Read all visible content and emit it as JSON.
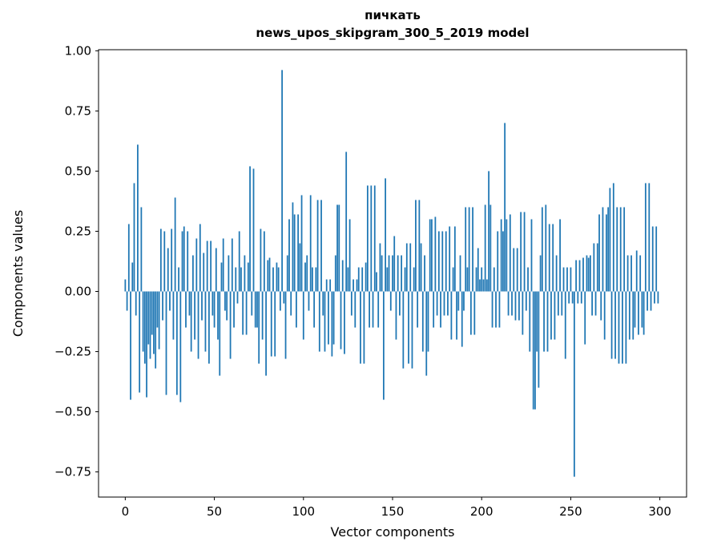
{
  "figure": {
    "title_line1": "пичкать",
    "title_line2": "news_upos_skipgram_300_5_2019 model",
    "xlabel": "Vector components",
    "ylabel": "Components values"
  },
  "chart_data": {
    "type": "bar",
    "title": "пичкать — news_upos_skipgram_300_5_2019 model",
    "xlabel": "Vector components",
    "ylabel": "Components values",
    "bar_color": "#1f77b4",
    "axis_color": "#000000",
    "grid": false,
    "legend": null,
    "n_components": 300,
    "xlim": [
      -15,
      315
    ],
    "ylim": [
      -0.8545,
      1.0045
    ],
    "xticks": [
      0,
      50,
      100,
      150,
      200,
      250,
      300
    ],
    "xtick_labels": [
      "0",
      "50",
      "100",
      "150",
      "200",
      "250",
      "300"
    ],
    "yticks": [
      -0.75,
      -0.5,
      -0.25,
      0,
      0.25,
      0.5,
      0.75,
      1.0
    ],
    "ytick_labels": [
      "−0.75",
      "−0.50",
      "−0.25",
      "0.00",
      "0.25",
      "0.50",
      "0.75",
      "1.00"
    ],
    "values": [
      0.05,
      -0.08,
      0.28,
      -0.45,
      0.12,
      0.45,
      -0.1,
      0.61,
      -0.42,
      0.35,
      -0.25,
      -0.3,
      -0.44,
      -0.22,
      -0.28,
      -0.18,
      -0.26,
      -0.32,
      -0.15,
      -0.24,
      0.26,
      -0.12,
      0.25,
      -0.43,
      0.18,
      -0.08,
      0.26,
      -0.2,
      0.39,
      -0.43,
      0.1,
      -0.46,
      0.25,
      0.27,
      -0.15,
      0.25,
      -0.1,
      -0.25,
      0.15,
      -0.2,
      0.22,
      -0.28,
      0.28,
      -0.12,
      0.16,
      -0.25,
      0.21,
      -0.3,
      0.21,
      -0.1,
      -0.15,
      0.18,
      -0.2,
      -0.35,
      0.12,
      0.22,
      -0.08,
      -0.12,
      0.15,
      -0.28,
      0.22,
      -0.15,
      0.1,
      -0.05,
      0.25,
      0.1,
      -0.18,
      0.15,
      -0.18,
      0.12,
      0.52,
      -0.1,
      0.51,
      -0.15,
      -0.15,
      -0.3,
      0.26,
      -0.2,
      0.25,
      -0.35,
      0.13,
      0.14,
      -0.27,
      0.1,
      -0.27,
      0.12,
      0.1,
      -0.08,
      0.92,
      -0.05,
      -0.28,
      0.15,
      0.3,
      -0.1,
      0.37,
      0.32,
      -0.15,
      0.32,
      0.2,
      0.4,
      -0.2,
      0.12,
      0.15,
      -0.08,
      0.4,
      0.1,
      -0.15,
      0.1,
      0.38,
      -0.25,
      0.38,
      -0.1,
      -0.25,
      0.05,
      -0.22,
      0.05,
      -0.27,
      -0.22,
      0.15,
      0.36,
      0.36,
      -0.24,
      0.13,
      -0.26,
      0.58,
      0.1,
      0.3,
      -0.1,
      0.05,
      -0.15,
      0.05,
      0.1,
      -0.3,
      0.1,
      -0.3,
      0.12,
      0.44,
      -0.15,
      0.44,
      -0.15,
      0.44,
      0.08,
      -0.15,
      0.2,
      0.15,
      -0.45,
      0.47,
      0.1,
      0.15,
      -0.08,
      0.15,
      0.23,
      -0.2,
      0.15,
      -0.1,
      0.15,
      -0.32,
      0.1,
      0.2,
      -0.3,
      0.2,
      -0.32,
      0.1,
      0.38,
      -0.15,
      0.38,
      0.2,
      -0.25,
      0.15,
      -0.35,
      -0.25,
      0.3,
      0.3,
      -0.15,
      0.31,
      -0.1,
      0.25,
      -0.15,
      0.25,
      -0.1,
      0.25,
      -0.1,
      0.27,
      -0.2,
      0.1,
      0.27,
      -0.2,
      -0.08,
      0.15,
      -0.23,
      -0.08,
      0.35,
      0.1,
      0.35,
      -0.18,
      0.35,
      -0.18,
      0.1,
      0.18,
      0.05,
      0.1,
      0.05,
      0.36,
      0.05,
      0.5,
      0.36,
      -0.15,
      0.1,
      -0.15,
      0.25,
      -0.15,
      0.3,
      0.25,
      0.7,
      0.3,
      -0.1,
      0.32,
      -0.1,
      0.18,
      -0.12,
      0.18,
      -0.12,
      0.33,
      -0.18,
      0.33,
      -0.08,
      0.1,
      -0.25,
      0.3,
      -0.49,
      -0.49,
      -0.25,
      -0.4,
      0.15,
      0.35,
      -0.25,
      0.36,
      -0.25,
      0.28,
      -0.2,
      0.28,
      -0.2,
      0.15,
      -0.1,
      0.3,
      -0.1,
      0.1,
      -0.28,
      0.1,
      -0.05,
      0.1,
      -0.05,
      -0.77,
      0.13,
      -0.05,
      0.13,
      -0.05,
      0.14,
      -0.22,
      0.15,
      0.14,
      0.15,
      -0.1,
      0.2,
      -0.1,
      0.2,
      0.32,
      -0.12,
      0.35,
      -0.2,
      0.32,
      0.35,
      0.43,
      -0.28,
      0.45,
      -0.28,
      0.35,
      -0.3,
      0.35,
      -0.3,
      0.35,
      -0.3,
      0.15,
      -0.2,
      0.15,
      -0.2,
      -0.15,
      0.17,
      -0.18,
      0.15,
      -0.15,
      -0.18,
      0.45,
      -0.08,
      0.45,
      -0.08,
      0.27,
      -0.05,
      0.27,
      -0.05
    ]
  }
}
